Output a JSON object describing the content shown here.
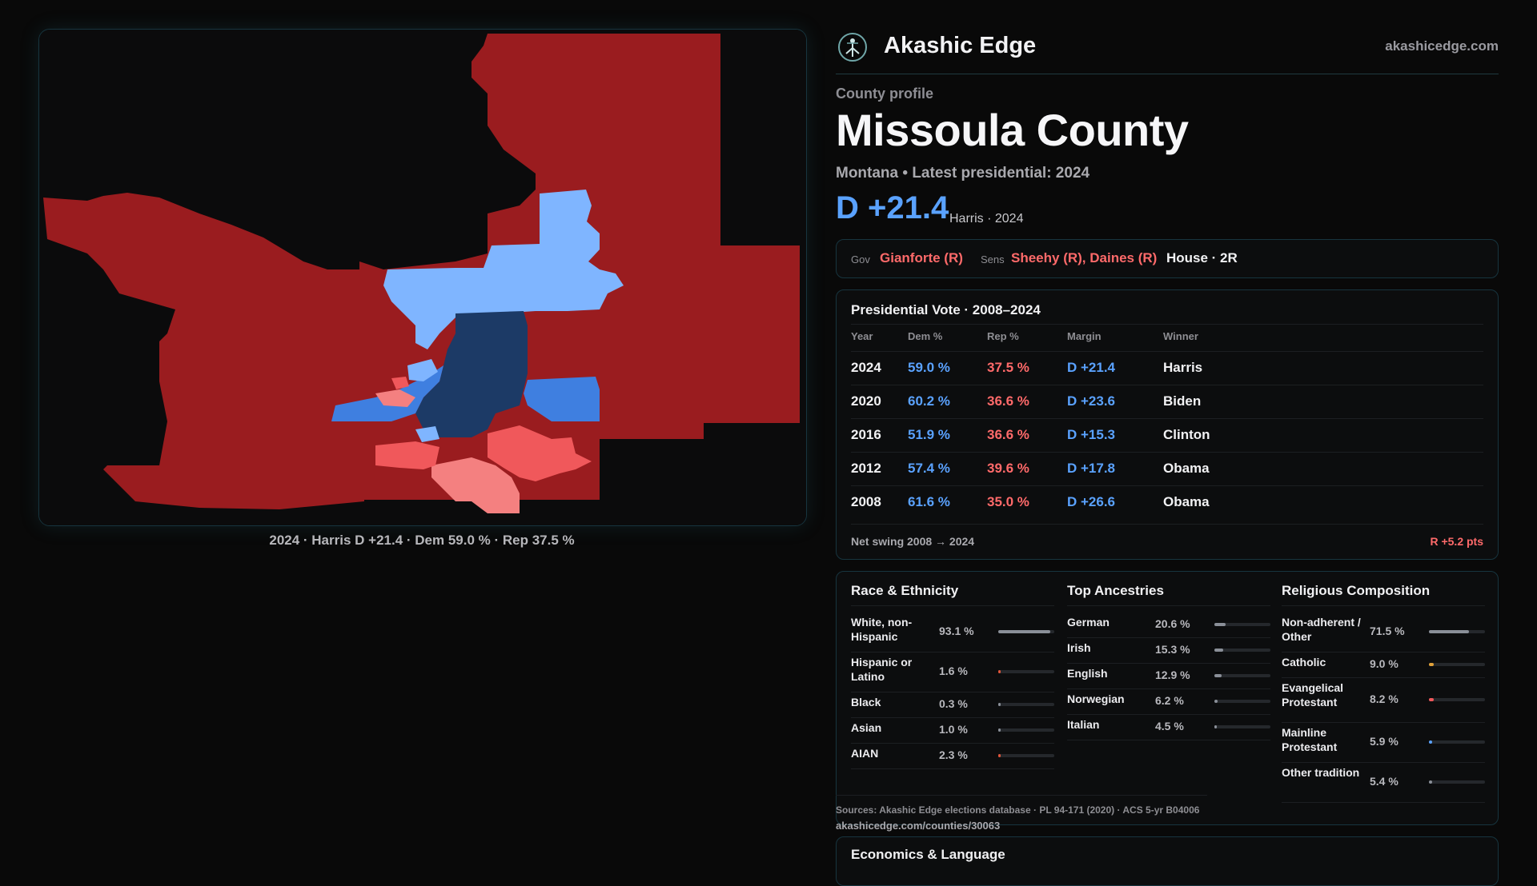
{
  "map": {
    "caption": "2024 · Harris D +21.4 · Dem 59.0 % · Rep 37.5 %",
    "colors": {
      "background": "#0b0b0c",
      "safe_rep": "#9a1c1f",
      "lean_rep": "#f0585b",
      "light_rep": "#f48080",
      "light_dem": "#7fb5ff",
      "mid_dem": "#3f7fe0",
      "deep_dem": "#1c3a66"
    }
  },
  "brand": {
    "name": "Akashic Edge",
    "url": "akashicedge.com",
    "logo_icon": "tree-of-life-icon"
  },
  "profile": {
    "eyebrow": "County profile",
    "title": "Missoula County",
    "subtitle": "Montana • Latest presidential: 2024",
    "margin": "D +21.4",
    "margin_note": "Harris · 2024"
  },
  "officials": {
    "gov_label": "Gov",
    "gov": "Gianforte (R)",
    "sens_label": "Sens",
    "sens": "Sheehy (R), Daines (R)",
    "house": "House · 2R"
  },
  "presidential": {
    "title": "Presidential Vote · 2008–2024",
    "headers": [
      "Year",
      "Dem %",
      "Rep %",
      "Margin",
      "Winner"
    ],
    "rows": [
      {
        "year": "2024",
        "dem": "59.0 %",
        "rep": "37.5 %",
        "margin": "D +21.4",
        "winner": "Harris"
      },
      {
        "year": "2020",
        "dem": "60.2 %",
        "rep": "36.6 %",
        "margin": "D +23.6",
        "winner": "Biden"
      },
      {
        "year": "2016",
        "dem": "51.9 %",
        "rep": "36.6 %",
        "margin": "D +15.3",
        "winner": "Clinton"
      },
      {
        "year": "2012",
        "dem": "57.4 %",
        "rep": "39.6 %",
        "margin": "D +17.8",
        "winner": "Obama"
      },
      {
        "year": "2008",
        "dem": "61.6 %",
        "rep": "35.0 %",
        "margin": "D +26.6",
        "winner": "Obama"
      }
    ],
    "swing_label": "Net swing 2008 → 2024",
    "swing_value": "R +5.2 pts"
  },
  "race": {
    "title": "Race & Ethnicity",
    "items": [
      {
        "label": "White, non-Hispanic",
        "value": "93.1 %",
        "fraction": 0.931,
        "color": "#8a8f98"
      },
      {
        "label": "Hispanic or Latino",
        "value": "1.6 %",
        "fraction": 0.016,
        "color": "#e0553a"
      },
      {
        "label": "Black",
        "value": "0.3 %",
        "fraction": 0.003,
        "color": "#8a8f98"
      },
      {
        "label": "Asian",
        "value": "1.0 %",
        "fraction": 0.01,
        "color": "#8a8f98"
      },
      {
        "label": "AIAN",
        "value": "2.3 %",
        "fraction": 0.023,
        "color": "#e0553a"
      }
    ]
  },
  "ancestry": {
    "title": "Top Ancestries",
    "items": [
      {
        "label": "German",
        "value": "20.6 %",
        "fraction": 0.206,
        "color": "#8a8f98"
      },
      {
        "label": "Irish",
        "value": "15.3 %",
        "fraction": 0.153,
        "color": "#8a8f98"
      },
      {
        "label": "English",
        "value": "12.9 %",
        "fraction": 0.129,
        "color": "#8a8f98"
      },
      {
        "label": "Norwegian",
        "value": "6.2 %",
        "fraction": 0.062,
        "color": "#8a8f98"
      },
      {
        "label": "Italian",
        "value": "4.5 %",
        "fraction": 0.045,
        "color": "#8a8f98"
      }
    ]
  },
  "religion": {
    "title": "Religious Composition",
    "items": [
      {
        "label": "Non-adherent / Other",
        "value": "71.5 %",
        "fraction": 0.715,
        "color": "#8a8f98"
      },
      {
        "label": "Catholic",
        "value": "9.0 %",
        "fraction": 0.09,
        "color": "#e0a13a"
      },
      {
        "label": "Evangelical Protestant",
        "value": "8.2 %",
        "fraction": 0.082,
        "color": "#f0585b"
      },
      {
        "label": "Mainline Protestant",
        "value": "5.9 %",
        "fraction": 0.059,
        "color": "#5aa2ff"
      },
      {
        "label": "Other tradition",
        "value": "5.4 %",
        "fraction": 0.054,
        "color": "#8a8f98"
      }
    ]
  },
  "sources": {
    "text": "Sources: Akashic Edge elections database · PL 94-171 (2020) · ACS 5-yr B04006",
    "url": "akashicedge.com/counties/30063"
  },
  "economics": {
    "title": "Economics & Language"
  }
}
